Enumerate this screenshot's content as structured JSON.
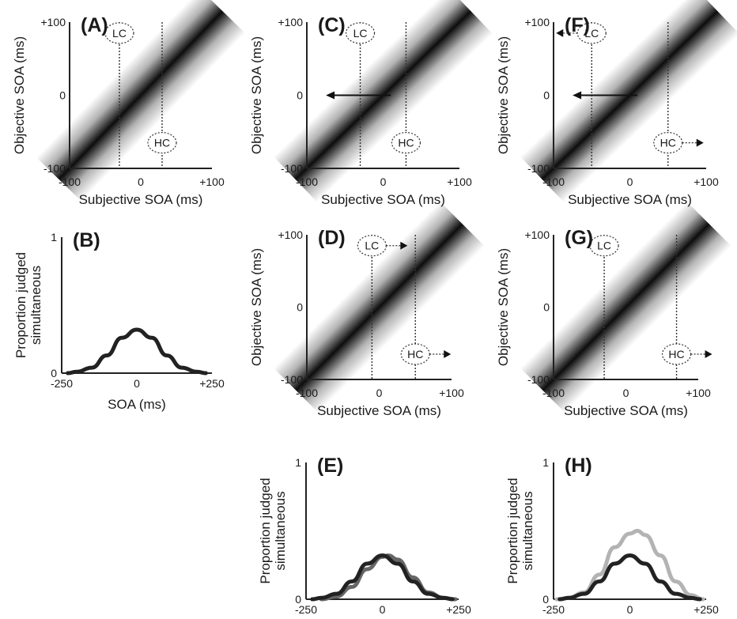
{
  "chart_data": [
    {
      "panel": "(A)",
      "type": "heatmap",
      "xlabel": "Subjective SOA (ms)",
      "ylabel": "Objective SOA (ms)",
      "xticks": [
        "-100",
        "0",
        "+100"
      ],
      "yticks": [
        "-100",
        "0",
        "+100"
      ],
      "xlim": [
        -100,
        100
      ],
      "ylim": [
        -100,
        100
      ],
      "markers": [
        {
          "label": "LC",
          "x": -30,
          "y": 85,
          "arrow": "none"
        },
        {
          "label": "HC",
          "x": 30,
          "y": -65,
          "arrow": "none"
        }
      ],
      "shift_arrow": null
    },
    {
      "panel": "(B)",
      "type": "line",
      "xlabel": "SOA (ms)",
      "ylabel": "Proportion judged simultaneous",
      "xticks": [
        "-250",
        "0",
        "+250"
      ],
      "yticks": [
        "0",
        "1"
      ],
      "xlim": [
        -250,
        250
      ],
      "ylim": [
        0,
        1
      ],
      "series": [
        {
          "color": "#222222",
          "x": [
            -230,
            -200,
            -150,
            -100,
            -50,
            0,
            50,
            100,
            150,
            200,
            230
          ],
          "y": [
            0.0,
            0.01,
            0.04,
            0.13,
            0.26,
            0.32,
            0.26,
            0.13,
            0.04,
            0.01,
            0.0
          ]
        }
      ]
    },
    {
      "panel": "(C)",
      "type": "heatmap",
      "xlabel": "Subjective SOA (ms)",
      "ylabel": "Objective SOA (ms)",
      "xticks": [
        "-100",
        "0",
        "+100"
      ],
      "yticks": [
        "-100",
        "0",
        "+100"
      ],
      "xlim": [
        -100,
        100
      ],
      "ylim": [
        -100,
        100
      ],
      "markers": [
        {
          "label": "LC",
          "x": -30,
          "y": 85,
          "arrow": "none"
        },
        {
          "label": "HC",
          "x": 30,
          "y": -65,
          "arrow": "none"
        }
      ],
      "shift_arrow": {
        "from": [
          10,
          0
        ],
        "to": [
          -75,
          0
        ]
      }
    },
    {
      "panel": "(D)",
      "type": "heatmap",
      "xlabel": "Subjective SOA (ms)",
      "ylabel": "Objective SOA (ms)",
      "xticks": [
        "-100",
        "0",
        "+100"
      ],
      "yticks": [
        "-100",
        "0",
        "+100"
      ],
      "xlim": [
        -100,
        100
      ],
      "ylim": [
        -100,
        100
      ],
      "markers": [
        {
          "label": "LC",
          "x": -10,
          "y": 85,
          "arrow": "right"
        },
        {
          "label": "HC",
          "x": 50,
          "y": -65,
          "arrow": "right"
        }
      ],
      "shift_arrow": null
    },
    {
      "panel": "(E)",
      "type": "line",
      "xlabel": "SOA (ms)",
      "ylabel": "Proportion judged simultaneous",
      "xticks": [
        "-250",
        "0",
        "+250"
      ],
      "yticks": [
        "0",
        "1"
      ],
      "xlim": [
        -250,
        250
      ],
      "ylim": [
        0,
        1
      ],
      "series": [
        {
          "color": "#666666",
          "x": [
            -200,
            -150,
            -100,
            -50,
            0,
            20,
            50,
            100,
            150,
            200,
            240
          ],
          "y": [
            0.0,
            0.02,
            0.09,
            0.22,
            0.31,
            0.32,
            0.29,
            0.16,
            0.05,
            0.01,
            0.0
          ]
        },
        {
          "color": "#222222",
          "x": [
            -230,
            -200,
            -150,
            -100,
            -50,
            0,
            50,
            100,
            150,
            200,
            230
          ],
          "y": [
            0.0,
            0.01,
            0.04,
            0.13,
            0.26,
            0.32,
            0.26,
            0.13,
            0.04,
            0.01,
            0.0
          ]
        }
      ]
    },
    {
      "panel": "(F)",
      "type": "heatmap",
      "xlabel": "Subjective SOA (ms)",
      "ylabel": "Objective SOA (ms)",
      "xticks": [
        "-100",
        "0",
        "+100"
      ],
      "yticks": [
        "-100",
        "0",
        "+100"
      ],
      "xlim": [
        -100,
        100
      ],
      "ylim": [
        -100,
        100
      ],
      "markers": [
        {
          "label": "LC",
          "x": -50,
          "y": 85,
          "arrow": "left"
        },
        {
          "label": "HC",
          "x": 50,
          "y": -65,
          "arrow": "right"
        }
      ],
      "shift_arrow": {
        "from": [
          10,
          0
        ],
        "to": [
          -75,
          0
        ]
      }
    },
    {
      "panel": "(G)",
      "type": "heatmap",
      "xlabel": "Subjective SOA (ms)",
      "ylabel": "Objective SOA (ms)",
      "xticks": [
        "-100",
        "0",
        "+100"
      ],
      "yticks": [
        "-100",
        "0",
        "+100"
      ],
      "xlim": [
        -100,
        100
      ],
      "ylim": [
        -100,
        100
      ],
      "markers": [
        {
          "label": "LC",
          "x": -30,
          "y": 85,
          "arrow": "none"
        },
        {
          "label": "HC",
          "x": 70,
          "y": -65,
          "arrow": "right"
        }
      ],
      "shift_arrow": null
    },
    {
      "panel": "(H)",
      "type": "line",
      "xlabel": "SOA (ms)",
      "ylabel": "Proportion judged simultaneous",
      "xticks": [
        "-250",
        "0",
        "+250"
      ],
      "yticks": [
        "0",
        "1"
      ],
      "xlim": [
        -250,
        250
      ],
      "ylim": [
        0,
        1
      ],
      "series": [
        {
          "color": "#b3b3b3",
          "x": [
            -240,
            -200,
            -150,
            -100,
            -50,
            0,
            25,
            50,
            100,
            150,
            200,
            240
          ],
          "y": [
            0.0,
            0.01,
            0.05,
            0.18,
            0.38,
            0.48,
            0.5,
            0.47,
            0.32,
            0.13,
            0.03,
            0.0
          ]
        },
        {
          "color": "#222222",
          "x": [
            -230,
            -200,
            -150,
            -100,
            -50,
            0,
            50,
            100,
            150,
            200,
            230
          ],
          "y": [
            0.0,
            0.01,
            0.04,
            0.13,
            0.26,
            0.32,
            0.26,
            0.13,
            0.04,
            0.01,
            0.0
          ]
        }
      ]
    }
  ]
}
